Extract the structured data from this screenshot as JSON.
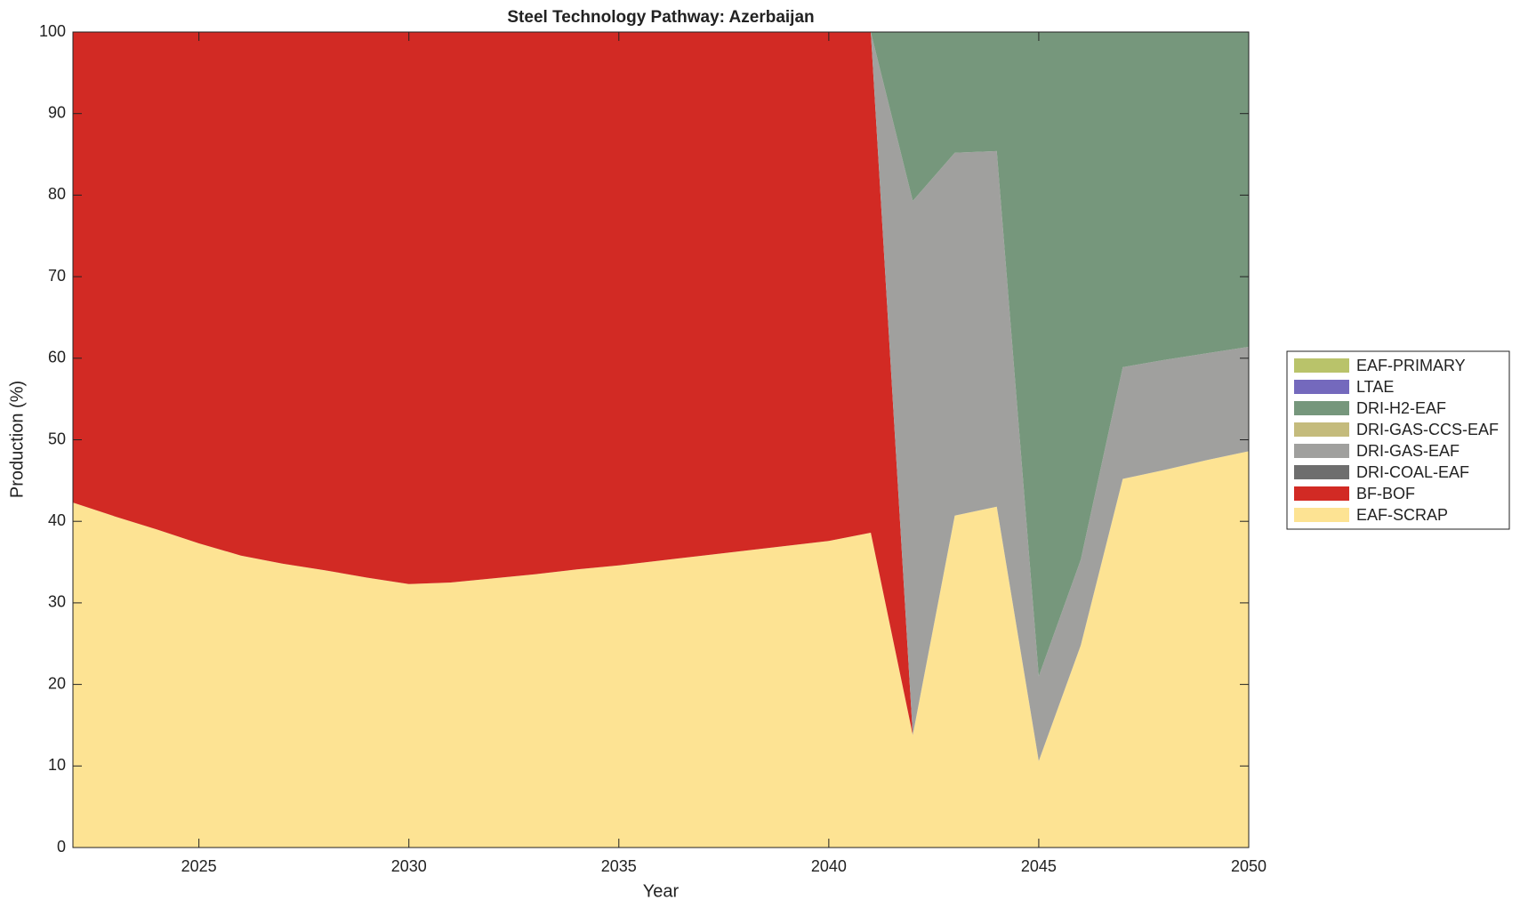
{
  "chart_data": {
    "type": "stacked_area",
    "title": "Steel Technology Pathway: Azerbaijan",
    "x_label": "Year",
    "y_label": "Production (%)",
    "x": [
      2022,
      2023,
      2024,
      2025,
      2026,
      2027,
      2028,
      2029,
      2030,
      2031,
      2032,
      2033,
      2034,
      2035,
      2036,
      2037,
      2038,
      2039,
      2040,
      2041,
      2042,
      2043,
      2044,
      2045,
      2046,
      2047,
      2048,
      2049,
      2050
    ],
    "xlim": [
      2022,
      2050
    ],
    "xticks": [
      2025,
      2030,
      2035,
      2040,
      2045,
      2050
    ],
    "ylim": [
      0,
      100
    ],
    "yticks": [
      0,
      10,
      20,
      30,
      40,
      50,
      60,
      70,
      80,
      90,
      100
    ],
    "legend": "right",
    "series": [
      {
        "name": "EAF-SCRAP",
        "color": "#fde393",
        "values": [
          42.3,
          40.6,
          39,
          37.3,
          35.8,
          34.8,
          34,
          33.1,
          32.3,
          32.5,
          33,
          33.5,
          34.1,
          34.6,
          35.2,
          35.8,
          36.4,
          37,
          37.6,
          38.6,
          13.8,
          40.7,
          41.8,
          10.6,
          24.8,
          45.2,
          46.3,
          47.5,
          48.6
        ]
      },
      {
        "name": "BF-BOF",
        "color": "#d22a24",
        "values": [
          57.7,
          59.4,
          61,
          62.7,
          64.2,
          65.2,
          66,
          66.9,
          67.7,
          67.5,
          67,
          66.5,
          65.9,
          65.4,
          64.8,
          64.2,
          63.6,
          63,
          62.4,
          61.4,
          0,
          0,
          0,
          0,
          0,
          0,
          0,
          0,
          0
        ]
      },
      {
        "name": "DRI-COAL-EAF",
        "color": "#6e6e6e",
        "values": [
          0,
          0,
          0,
          0,
          0,
          0,
          0,
          0,
          0,
          0,
          0,
          0,
          0,
          0,
          0,
          0,
          0,
          0,
          0,
          0,
          0,
          0,
          0,
          0,
          0,
          0,
          0,
          0,
          0
        ]
      },
      {
        "name": "DRI-GAS-EAF",
        "color": "#a0a09e",
        "values": [
          0,
          0,
          0,
          0,
          0,
          0,
          0,
          0,
          0,
          0,
          0,
          0,
          0,
          0,
          0,
          0,
          0,
          0,
          0,
          0,
          65.5,
          44.5,
          43.6,
          10.4,
          10.5,
          13.7,
          13.5,
          13.1,
          12.8
        ]
      },
      {
        "name": "DRI-GAS-CCS-EAF",
        "color": "#c4bb7c",
        "values": [
          0,
          0,
          0,
          0,
          0,
          0,
          0,
          0,
          0,
          0,
          0,
          0,
          0,
          0,
          0,
          0,
          0,
          0,
          0,
          0,
          0,
          0,
          0,
          0,
          0,
          0,
          0,
          0,
          0
        ]
      },
      {
        "name": "DRI-H2-EAF",
        "color": "#76977c",
        "values": [
          0,
          0,
          0,
          0,
          0,
          0,
          0,
          0,
          0,
          0,
          0,
          0,
          0,
          0,
          0,
          0,
          0,
          0,
          0,
          0,
          20.7,
          14.8,
          14.6,
          79,
          64.7,
          41.1,
          40.2,
          39.4,
          38.6
        ]
      },
      {
        "name": "LTAE",
        "color": "#7469bd",
        "values": [
          0,
          0,
          0,
          0,
          0,
          0,
          0,
          0,
          0,
          0,
          0,
          0,
          0,
          0,
          0,
          0,
          0,
          0,
          0,
          0,
          0,
          0,
          0,
          0,
          0,
          0,
          0,
          0,
          0
        ]
      },
      {
        "name": "EAF-PRIMARY",
        "color": "#b9c36a",
        "values": [
          0,
          0,
          0,
          0,
          0,
          0,
          0,
          0,
          0,
          0,
          0,
          0,
          0,
          0,
          0,
          0,
          0,
          0,
          0,
          0,
          0,
          0,
          0,
          0,
          0,
          0,
          0,
          0,
          0
        ]
      }
    ]
  }
}
